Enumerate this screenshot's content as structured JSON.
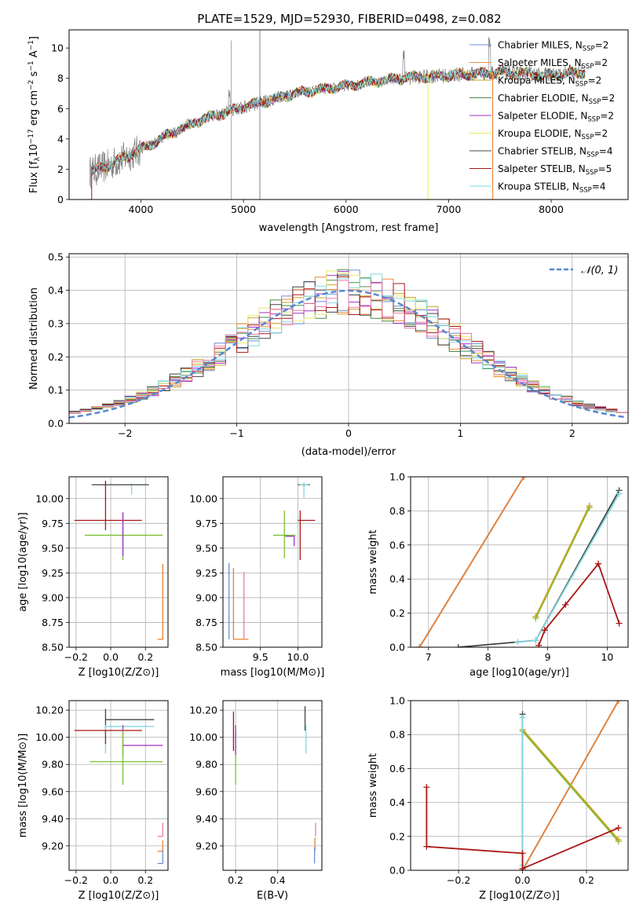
{
  "title": "PLATE=1529, MJD=52930, FIBERID=0498, z=0.082",
  "colors": {
    "Chabrier MILES": "#6c8ed6",
    "Salpeter MILES": "#f08a3c",
    "Kroupa MILES": "#c9a227",
    "Chabrier ELODIE": "#4a8a4a",
    "Salpeter ELODIE": "#a030c0",
    "Kroupa ELODIE": "#e8e86a",
    "Chabrier STELIB": "#444444",
    "Salpeter STELIB": "#aa1515",
    "Kroupa STELIB": "#80d8e0",
    "pink": "#ee7aa8",
    "green": "#7ac030",
    "orange": "#e88030",
    "data": "#808080",
    "normal": "#5588d0"
  },
  "chart_data": [
    {
      "type": "line",
      "name": "spectrum",
      "xlabel": "wavelength [Angstrom, rest frame]",
      "ylabel": "Flux [f_λ 10^-17 erg cm^-2 s^-1 A^-1]",
      "xlim": [
        3300,
        8750
      ],
      "ylim": [
        0,
        11.2
      ],
      "xticks": [
        4000,
        5000,
        6000,
        7000,
        8000
      ],
      "yticks": [
        0,
        2,
        4,
        6,
        8,
        10
      ],
      "grid": false,
      "legend_position": "top-right",
      "legend": [
        {
          "base": "Chabrier MILES, N",
          "sub": "SSP",
          "tail": "=2",
          "color": "#6c8ed6"
        },
        {
          "base": "Salpeter MILES, N",
          "sub": "SSP",
          "tail": "=2",
          "color": "#f08a3c"
        },
        {
          "base": "Kroupa MILES, N",
          "sub": "SSP",
          "tail": "=2",
          "color": "#c9a227"
        },
        {
          "base": "Chabrier ELODIE, N",
          "sub": "SSP",
          "tail": "=2",
          "color": "#4a8a4a"
        },
        {
          "base": "Salpeter ELODIE, N",
          "sub": "SSP",
          "tail": "=2",
          "color": "#a030c0"
        },
        {
          "base": "Kroupa ELODIE, N",
          "sub": "SSP",
          "tail": "=2",
          "color": "#e8e86a"
        },
        {
          "base": "Chabrier STELIB, N",
          "sub": "SSP",
          "tail": "=4",
          "color": "#444444"
        },
        {
          "base": "Salpeter STELIB, N",
          "sub": "SSP",
          "tail": "=5",
          "color": "#aa1515"
        },
        {
          "base": "Kroupa STELIB, N",
          "sub": "SSP",
          "tail": "=4",
          "color": "#80d8e0"
        }
      ],
      "continuum": {
        "x": [
          3500,
          3700,
          4000,
          4300,
          4600,
          5000,
          5500,
          6000,
          6500,
          7000,
          7500,
          8000,
          8300
        ],
        "y": [
          1.8,
          2.3,
          3.3,
          4.4,
          5.3,
          6.1,
          7.0,
          7.5,
          8.0,
          8.2,
          8.4,
          8.2,
          8.4
        ]
      }
    },
    {
      "type": "line",
      "name": "residuals",
      "xlabel": "(data-model)/error",
      "ylabel": "Normed distribution",
      "xlim": [
        -2.5,
        2.5
      ],
      "ylim": [
        0,
        0.51
      ],
      "xticks": [
        -2,
        -1,
        0,
        1,
        2
      ],
      "yticks": [
        0.0,
        0.1,
        0.2,
        0.3,
        0.4,
        0.5
      ],
      "grid": true,
      "legend_position": "top-right",
      "legend": [
        "𝒩(0,1)"
      ],
      "series": [
        {
          "name": "𝒩(0,1)",
          "mean": 0,
          "std": 1
        }
      ]
    },
    {
      "type": "scatter",
      "name": "age-vs-Z",
      "xlabel": "Z [log10(Z/Z⊙)]",
      "ylabel": "age [log10(age/yr)]",
      "xlim": [
        -0.24,
        0.33
      ],
      "ylim": [
        8.5,
        10.22
      ],
      "xticks": [
        -0.2,
        0.0,
        0.2
      ],
      "yticks": [
        8.5,
        8.75,
        9.0,
        9.25,
        9.5,
        9.75,
        10.0
      ],
      "grid": true,
      "points": [
        {
          "x": 0.12,
          "y": 10.14,
          "xerr": [
            0.22,
            0.09
          ],
          "yerr": [
            0.1,
            0.01
          ],
          "color": "#80d8e0"
        },
        {
          "x": 0.12,
          "y": 10.14,
          "xerr": [
            0.23,
            0.1
          ],
          "yerr": [
            0.0,
            0.0
          ],
          "color": "#444444"
        },
        {
          "x": -0.03,
          "y": 9.78,
          "xerr": [
            0.18,
            0.21
          ],
          "yerr": [
            0.1,
            0.4
          ],
          "color": "#aa1515"
        },
        {
          "x": 0.07,
          "y": 9.63,
          "xerr": [
            0.22,
            0.23
          ],
          "yerr": [
            0.25,
            0.23
          ],
          "color": "#7ac030"
        },
        {
          "x": 0.07,
          "y": 9.62,
          "xerr": [
            0.0,
            0.0
          ],
          "yerr": [
            0.2,
            0.24
          ],
          "color": "#a030c0"
        },
        {
          "x": 0.3,
          "y": 8.58,
          "xerr": [
            0.03,
            0.0
          ],
          "yerr": [
            0.0,
            0.76
          ],
          "color": "#e88030"
        }
      ]
    },
    {
      "type": "scatter",
      "name": "age-vs-mass",
      "xlabel": "mass [log10(M/M⊙)]",
      "ylabel": "",
      "xlim": [
        9.0,
        10.32
      ],
      "ylim": [
        8.5,
        10.22
      ],
      "xticks": [
        9.5,
        10.0
      ],
      "yticks": [
        8.5,
        8.75,
        9.0,
        9.25,
        9.5,
        9.75,
        10.0
      ],
      "grid": true,
      "points": [
        {
          "x": 10.08,
          "y": 10.14,
          "xerr": [
            0.08,
            0.08
          ],
          "yerr": [
            0.02,
            0.02
          ],
          "color": "#444444"
        },
        {
          "x": 10.08,
          "y": 10.14,
          "xerr": [
            0.06,
            0.06
          ],
          "yerr": [
            0.13,
            0.02
          ],
          "color": "#80d8e0"
        },
        {
          "x": 10.03,
          "y": 9.78,
          "xerr": [
            0.03,
            0.2
          ],
          "yerr": [
            0.4,
            0.1
          ],
          "color": "#aa1515"
        },
        {
          "x": 9.82,
          "y": 9.63,
          "xerr": [
            0.15,
            0.15
          ],
          "yerr": [
            0.23,
            0.25
          ],
          "color": "#7ac030"
        },
        {
          "x": 9.95,
          "y": 9.62,
          "xerr": [
            0.12,
            0.0
          ],
          "yerr": [
            0.1,
            0.0
          ],
          "color": "#a030c0"
        },
        {
          "x": 9.08,
          "y": 8.58,
          "xerr": [
            0.0,
            0.0
          ],
          "yerr": [
            0.0,
            0.77
          ],
          "color": "#6c8ed6"
        },
        {
          "x": 9.14,
          "y": 8.58,
          "xerr": [
            0.0,
            0.2
          ],
          "yerr": [
            0.0,
            0.72
          ],
          "color": "#e88030"
        },
        {
          "x": 9.28,
          "y": 8.58,
          "xerr": [
            0.0,
            0.0
          ],
          "yerr": [
            0.0,
            0.68
          ],
          "color": "#ee7aa8"
        }
      ]
    },
    {
      "type": "line",
      "name": "weight-vs-age",
      "xlabel": "age [log10(age/yr)]",
      "ylabel": "mass weight",
      "xlim": [
        6.7,
        10.35
      ],
      "ylim": [
        0,
        1.0
      ],
      "xticks": [
        7,
        8,
        9,
        10
      ],
      "yticks": [
        0.0,
        0.2,
        0.4,
        0.6,
        0.8,
        1.0
      ],
      "grid": true,
      "series": [
        {
          "x": [
            6.85,
            8.6
          ],
          "y": [
            0.0,
            1.0
          ],
          "color": "#6c8ed6"
        },
        {
          "x": [
            6.85,
            8.6
          ],
          "y": [
            0.0,
            1.0
          ],
          "color": "#e88030"
        },
        {
          "x": [
            7.5,
            8.8,
            10.2
          ],
          "y": [
            0.0,
            0.04,
            0.92
          ],
          "color": "#444444"
        },
        {
          "x": [
            8.8,
            9.7
          ],
          "y": [
            0.17,
            0.82
          ],
          "color": "#7ac030"
        },
        {
          "x": [
            8.8,
            9.7
          ],
          "y": [
            0.18,
            0.83
          ],
          "color": "#c9a227"
        },
        {
          "x": [
            8.5,
            8.8,
            10.2
          ],
          "y": [
            0.03,
            0.04,
            0.9
          ],
          "color": "#80d8e0"
        },
        {
          "x": [
            8.85,
            8.95,
            9.3,
            9.85,
            10.2
          ],
          "y": [
            0.01,
            0.1,
            0.25,
            0.49,
            0.14
          ],
          "color": "#aa1515"
        }
      ]
    },
    {
      "type": "scatter",
      "name": "mass-vs-Z",
      "xlabel": "Z [log10(Z/Z⊙)]",
      "ylabel": "mass [log10(M/M⊙)]",
      "xlim": [
        -0.24,
        0.33
      ],
      "ylim": [
        9.02,
        10.27
      ],
      "xticks": [
        -0.2,
        0.0,
        0.2
      ],
      "yticks": [
        9.2,
        9.4,
        9.6,
        9.8,
        10.0,
        10.2
      ],
      "grid": true,
      "points": [
        {
          "x": -0.03,
          "y": 10.13,
          "xerr": [
            0.0,
            0.28
          ],
          "yerr": [
            0.08,
            0.08
          ],
          "color": "#444444"
        },
        {
          "x": -0.03,
          "y": 10.08,
          "xerr": [
            0.0,
            0.28
          ],
          "yerr": [
            0.2,
            0.01
          ],
          "color": "#80d8e0"
        },
        {
          "x": -0.03,
          "y": 10.05,
          "xerr": [
            0.18,
            0.21
          ],
          "yerr": [
            0.1,
            0.0
          ],
          "color": "#aa1515"
        },
        {
          "x": 0.07,
          "y": 9.94,
          "xerr": [
            0.0,
            0.23
          ],
          "yerr": [
            0.07,
            0.15
          ],
          "color": "#a030c0"
        },
        {
          "x": 0.07,
          "y": 9.82,
          "xerr": [
            0.19,
            0.23
          ],
          "yerr": [
            0.17,
            0.23
          ],
          "color": "#7ac030"
        },
        {
          "x": 0.3,
          "y": 9.27,
          "xerr": [
            0.03,
            0.0
          ],
          "yerr": [
            0.0,
            0.1
          ],
          "color": "#ee7aa8"
        },
        {
          "x": 0.3,
          "y": 9.16,
          "xerr": [
            0.03,
            0.0
          ],
          "yerr": [
            0.0,
            0.08
          ],
          "color": "#e88030"
        },
        {
          "x": 0.3,
          "y": 9.07,
          "xerr": [
            0.03,
            0.0
          ],
          "yerr": [
            0.0,
            0.1
          ],
          "color": "#6c8ed6"
        }
      ]
    },
    {
      "type": "scatter",
      "name": "mass-vs-EBV",
      "xlabel": "E(B-V)",
      "ylabel": "",
      "xlim": [
        0.14,
        0.61
      ],
      "ylim": [
        9.02,
        10.27
      ],
      "xticks": [
        0.2,
        0.4
      ],
      "yticks": [
        9.2,
        9.4,
        9.6,
        9.8,
        10.0,
        10.2
      ],
      "grid": true,
      "points": [
        {
          "x": 0.19,
          "y": 10.05,
          "xerr": [
            0,
            0
          ],
          "yerr": [
            0.15,
            0.14
          ],
          "color": "#aa1515"
        },
        {
          "x": 0.2,
          "y": 9.82,
          "xerr": [
            0,
            0
          ],
          "yerr": [
            0.17,
            0.23
          ],
          "color": "#7ac030"
        },
        {
          "x": 0.2,
          "y": 9.94,
          "xerr": [
            0,
            0
          ],
          "yerr": [
            0.07,
            0.15
          ],
          "color": "#a030c0"
        },
        {
          "x": 0.53,
          "y": 10.13,
          "xerr": [
            0,
            0
          ],
          "yerr": [
            0.08,
            0.1
          ],
          "color": "#444444"
        },
        {
          "x": 0.535,
          "y": 10.08,
          "xerr": [
            0,
            0
          ],
          "yerr": [
            0.2,
            0.01
          ],
          "color": "#80d8e0"
        },
        {
          "x": 0.58,
          "y": 9.27,
          "xerr": [
            0,
            0
          ],
          "yerr": [
            0.0,
            0.1
          ],
          "color": "#ee7aa8"
        },
        {
          "x": 0.577,
          "y": 9.16,
          "xerr": [
            0,
            0
          ],
          "yerr": [
            0.0,
            0.1
          ],
          "color": "#e88030"
        },
        {
          "x": 0.575,
          "y": 9.07,
          "xerr": [
            0,
            0
          ],
          "yerr": [
            0.0,
            0.12
          ],
          "color": "#6c8ed6"
        }
      ]
    },
    {
      "type": "line",
      "name": "weight-vs-Z",
      "xlabel": "Z [log10(Z/Z⊙)]",
      "ylabel": "mass weight",
      "xlim": [
        -0.35,
        0.33
      ],
      "ylim": [
        0,
        1.0
      ],
      "xticks": [
        -0.2,
        0.0,
        0.2
      ],
      "yticks": [
        0.0,
        0.2,
        0.4,
        0.6,
        0.8,
        1.0
      ],
      "grid": true,
      "series": [
        {
          "x": [
            0.0,
            0.3
          ],
          "y": [
            0.0,
            1.0
          ],
          "color": "#6c8ed6"
        },
        {
          "x": [
            0.0,
            0.3
          ],
          "y": [
            0.0,
            1.0
          ],
          "color": "#e88030"
        },
        {
          "x": [
            0.0,
            0.0
          ],
          "y": [
            0.0,
            0.92
          ],
          "color": "#444444"
        },
        {
          "x": [
            0.0,
            0.3
          ],
          "y": [
            0.82,
            0.17
          ],
          "color": "#7ac030"
        },
        {
          "x": [
            0.0,
            0.3
          ],
          "y": [
            0.83,
            0.18
          ],
          "color": "#c9a227"
        },
        {
          "x": [
            0.0,
            0.0
          ],
          "y": [
            0.03,
            0.9
          ],
          "color": "#80d8e0"
        },
        {
          "x": [
            -0.3,
            -0.3,
            0.0,
            0.0,
            0.3
          ],
          "y": [
            0.49,
            0.14,
            0.1,
            0.01,
            0.25
          ],
          "color": "#aa1515"
        }
      ]
    }
  ],
  "labels": {
    "flux_ylabel_pre": "Flux [f",
    "flux_ylabel_sub": "λ",
    "flux_ylabel_mid": "10",
    "flux_ylabel_sup1": "−17",
    "flux_ylabel_mid2": " erg cm",
    "flux_ylabel_sup2": "−2",
    "flux_ylabel_mid3": " s",
    "flux_ylabel_sup3": "−1",
    "flux_ylabel_mid4": " A",
    "flux_ylabel_sup4": "−1",
    "flux_ylabel_end": "]",
    "normal_legend": "𝒩(0, 1)"
  }
}
